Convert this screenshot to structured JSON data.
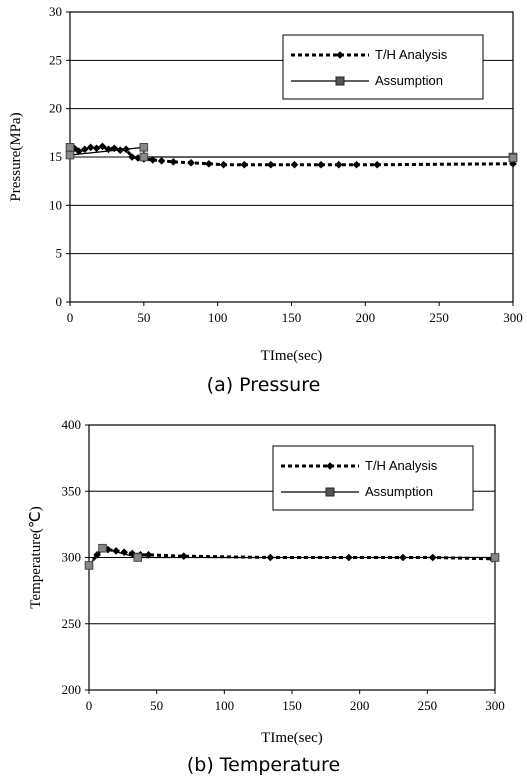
{
  "chart_data": [
    {
      "type": "line",
      "title": "",
      "caption": "(a) Pressure",
      "xlabel": "TIme(sec)",
      "ylabel": "Pressure(MPa)",
      "xlim": [
        0,
        300
      ],
      "ylim": [
        0,
        30
      ],
      "xticks": [
        0,
        50,
        100,
        150,
        200,
        250,
        300
      ],
      "yticks": [
        0,
        5,
        10,
        15,
        20,
        25,
        30
      ],
      "grid": "horizontal",
      "legend_position": "top-right",
      "series": [
        {
          "name": "T/H Analysis",
          "style": "dotted",
          "marker": "diamond",
          "x": [
            0,
            3,
            6,
            10,
            14,
            18,
            22,
            26,
            30,
            34,
            38,
            42,
            46,
            50,
            56,
            62,
            70,
            82,
            94,
            104,
            118,
            136,
            152,
            170,
            182,
            194,
            208,
            300
          ],
          "y": [
            15.6,
            15.9,
            15.6,
            15.8,
            16.0,
            15.9,
            16.1,
            15.8,
            15.9,
            15.7,
            15.8,
            15.0,
            14.9,
            14.8,
            14.7,
            14.6,
            14.5,
            14.4,
            14.3,
            14.2,
            14.2,
            14.2,
            14.2,
            14.2,
            14.2,
            14.2,
            14.2,
            14.3
          ]
        },
        {
          "name": "Assumption",
          "style": "solid",
          "marker": "square",
          "x": [
            0,
            0,
            50,
            50,
            300,
            300
          ],
          "y": [
            16.0,
            15.2,
            16.0,
            15.0,
            15.0,
            14.9
          ]
        }
      ]
    },
    {
      "type": "line",
      "title": "",
      "caption": "(b) Temperature",
      "xlabel": "TIme(sec)",
      "ylabel": "Temperature(℃)",
      "xlim": [
        0,
        300
      ],
      "ylim": [
        200,
        400
      ],
      "xticks": [
        0,
        50,
        100,
        150,
        200,
        250,
        300
      ],
      "yticks": [
        200,
        250,
        300,
        350,
        400
      ],
      "grid": "horizontal",
      "legend_position": "top-right",
      "series": [
        {
          "name": "T/H Analysis",
          "style": "dotted",
          "marker": "diamond",
          "x": [
            0,
            6,
            10,
            14,
            20,
            26,
            32,
            38,
            44,
            70,
            134,
            192,
            232,
            254,
            298
          ],
          "y": [
            294,
            302,
            307,
            306,
            305,
            304,
            303,
            302,
            302,
            301,
            300,
            300,
            300,
            300,
            299
          ]
        },
        {
          "name": "Assumption",
          "style": "solid",
          "marker": "square",
          "x": [
            0,
            10,
            36,
            300
          ],
          "y": [
            294,
            307,
            300,
            300
          ]
        }
      ]
    }
  ]
}
